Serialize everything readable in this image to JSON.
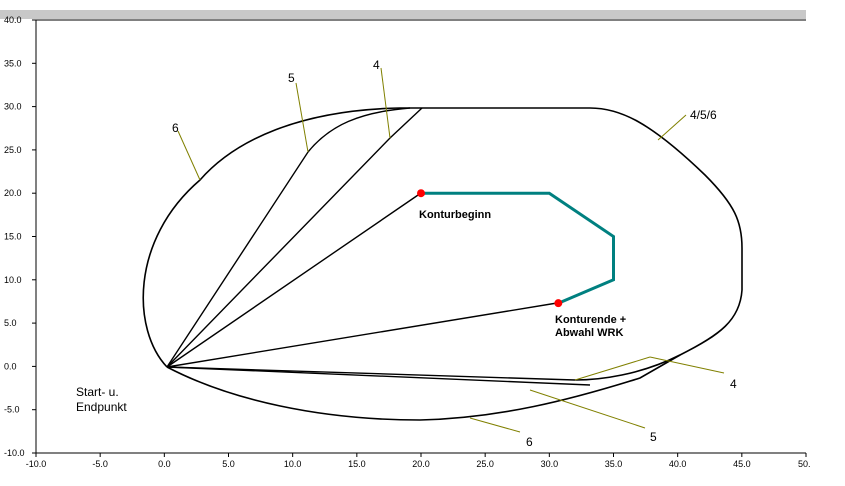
{
  "chart_data": {
    "type": "diagram",
    "xlim": [
      -10,
      50
    ],
    "ylim": [
      -10,
      40
    ],
    "x_ticks": [
      "-10.0",
      "-5.0",
      "0.0",
      "5.0",
      "10.0",
      "15.0",
      "20.0",
      "25.0",
      "30.0",
      "35.0",
      "40.0",
      "45.0",
      "50."
    ],
    "y_ticks": [
      "40.0",
      "35.0",
      "30.0",
      "25.0",
      "20.0",
      "15.0",
      "10.0",
      "5.0",
      "0.0",
      "-5.0",
      "-10.0"
    ],
    "contour": [
      [
        20,
        20
      ],
      [
        30,
        20
      ],
      [
        35,
        15
      ],
      [
        35,
        10
      ],
      [
        30.7,
        7.3
      ]
    ],
    "contour_start": [
      20,
      20
    ],
    "contour_end": [
      30.7,
      7.3
    ],
    "labels": {
      "start_end": [
        "Start- u.",
        "Endpunkt"
      ],
      "kontur_start": "Konturbeginn",
      "kontur_end": [
        "Konturende +",
        "Abwahl WRK"
      ],
      "path_4": "4",
      "path_5": "5",
      "path_6": "6",
      "path_456": "4/5/6",
      "path_4_bottom": "4",
      "path_5_bottom": "5",
      "path_6_bottom": "6"
    },
    "colors": {
      "contour": "#008080",
      "point": "#ff0000",
      "leader": "#808000",
      "header": "#c0c0c0"
    }
  }
}
